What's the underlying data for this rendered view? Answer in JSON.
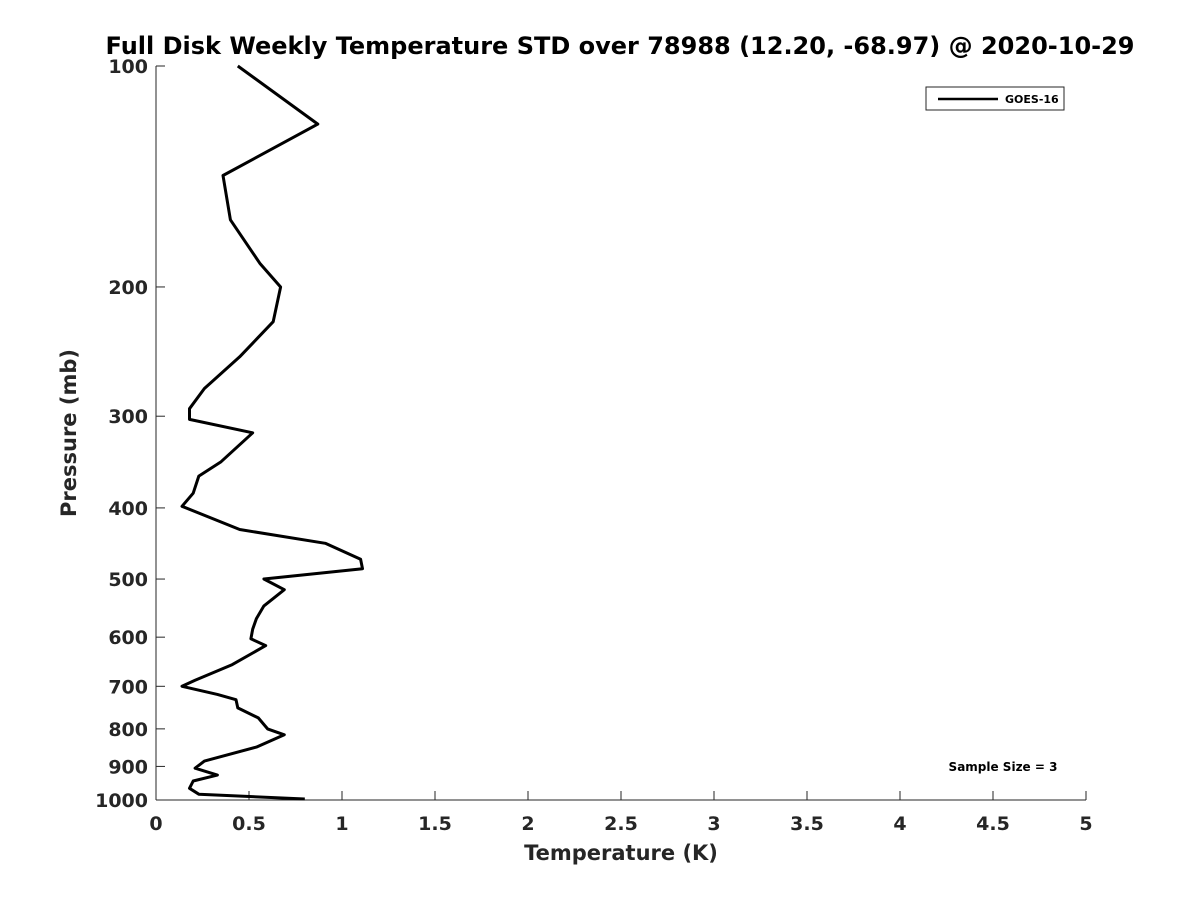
{
  "chart_data": {
    "type": "line",
    "title": "Full Disk Weekly Temperature STD over 78988 (12.20, -68.97) @ 2020-10-29",
    "xlabel": "Temperature (K)",
    "ylabel": "Pressure (mb)",
    "xlim": [
      0,
      5
    ],
    "ylim": [
      100,
      1000
    ],
    "yscale": "log",
    "y_reversed": true,
    "grid": false,
    "legend_position": "top-right",
    "xticks": [
      0,
      0.5,
      1,
      1.5,
      2,
      2.5,
      3,
      3.5,
      4,
      4.5,
      5
    ],
    "xtick_labels": [
      "0",
      "0.5",
      "1",
      "1.5",
      "2",
      "2.5",
      "3",
      "3.5",
      "4",
      "4.5",
      "5"
    ],
    "yticks": [
      100,
      200,
      300,
      400,
      500,
      600,
      700,
      800,
      900,
      1000
    ],
    "ytick_labels": [
      "100",
      "200",
      "300",
      "400",
      "500",
      "600",
      "700",
      "800",
      "900",
      "1000"
    ],
    "series": [
      {
        "name": "GOES-16",
        "color": "#000000",
        "points": [
          [
            0.44,
            100
          ],
          [
            0.87,
            120
          ],
          [
            0.36,
            141
          ],
          [
            0.4,
            162
          ],
          [
            0.56,
            186
          ],
          [
            0.67,
            200
          ],
          [
            0.63,
            223
          ],
          [
            0.45,
            249
          ],
          [
            0.26,
            275
          ],
          [
            0.18,
            293
          ],
          [
            0.18,
            303
          ],
          [
            0.52,
            316
          ],
          [
            0.35,
            346
          ],
          [
            0.23,
            362
          ],
          [
            0.2,
            382
          ],
          [
            0.14,
            398
          ],
          [
            0.45,
            428
          ],
          [
            0.91,
            447
          ],
          [
            1.1,
            470
          ],
          [
            1.11,
            484
          ],
          [
            0.58,
            500
          ],
          [
            0.69,
            517
          ],
          [
            0.58,
            544
          ],
          [
            0.54,
            566
          ],
          [
            0.52,
            585
          ],
          [
            0.51,
            603
          ],
          [
            0.59,
            616
          ],
          [
            0.41,
            654
          ],
          [
            0.21,
            687
          ],
          [
            0.14,
            700
          ],
          [
            0.33,
            718
          ],
          [
            0.43,
            730
          ],
          [
            0.44,
            749
          ],
          [
            0.55,
            773
          ],
          [
            0.6,
            800
          ],
          [
            0.69,
            815
          ],
          [
            0.54,
            847
          ],
          [
            0.26,
            885
          ],
          [
            0.21,
            905
          ],
          [
            0.33,
            925
          ],
          [
            0.2,
            942
          ],
          [
            0.18,
            964
          ],
          [
            0.23,
            982
          ],
          [
            0.8,
            997
          ]
        ]
      }
    ],
    "legend": [
      {
        "label": "GOES-16"
      }
    ],
    "annotation": "Sample Size = 3"
  }
}
